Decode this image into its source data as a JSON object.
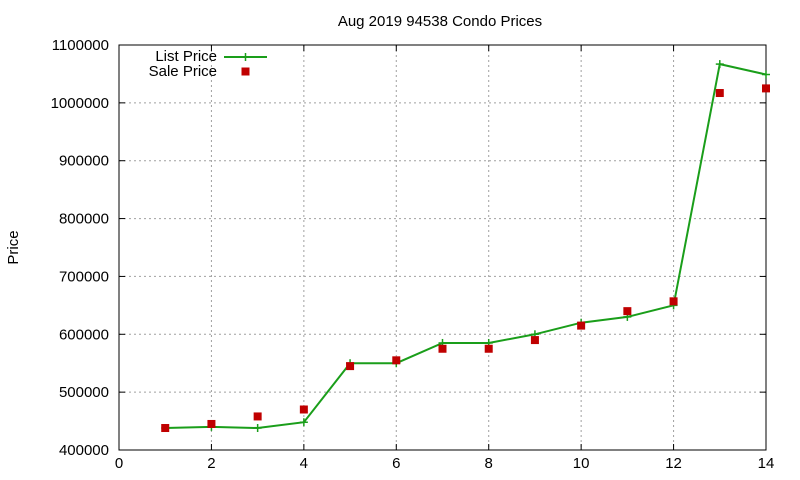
{
  "chart_data": {
    "type": "line",
    "title": "Aug 2019 94538 Condo Prices",
    "xlabel": "",
    "ylabel": "Price",
    "xlim": [
      0,
      14
    ],
    "ylim": [
      400000,
      1100000
    ],
    "x_ticks": [
      0,
      2,
      4,
      6,
      8,
      10,
      12,
      14
    ],
    "y_ticks": [
      400000,
      500000,
      600000,
      700000,
      800000,
      900000,
      1000000,
      1100000
    ],
    "grid": true,
    "legend_position": "top-left",
    "series": [
      {
        "name": "List Price",
        "style": "line with plus markers",
        "color": "#1a9e1a",
        "x": [
          1,
          2,
          3,
          4,
          5,
          6,
          7,
          8,
          9,
          10,
          11,
          12,
          13,
          14
        ],
        "values": [
          438000,
          440000,
          438000,
          448000,
          550000,
          550000,
          585000,
          585000,
          600000,
          620000,
          630000,
          650000,
          1067000,
          1049000
        ]
      },
      {
        "name": "Sale Price",
        "style": "square markers",
        "color": "#c00000",
        "x": [
          1,
          2,
          3,
          4,
          5,
          6,
          7,
          8,
          9,
          10,
          11,
          12,
          13,
          14
        ],
        "values": [
          438000,
          445000,
          458000,
          470000,
          545000,
          555000,
          575000,
          575000,
          590000,
          615000,
          640000,
          657000,
          1017000,
          1025000
        ]
      }
    ]
  }
}
